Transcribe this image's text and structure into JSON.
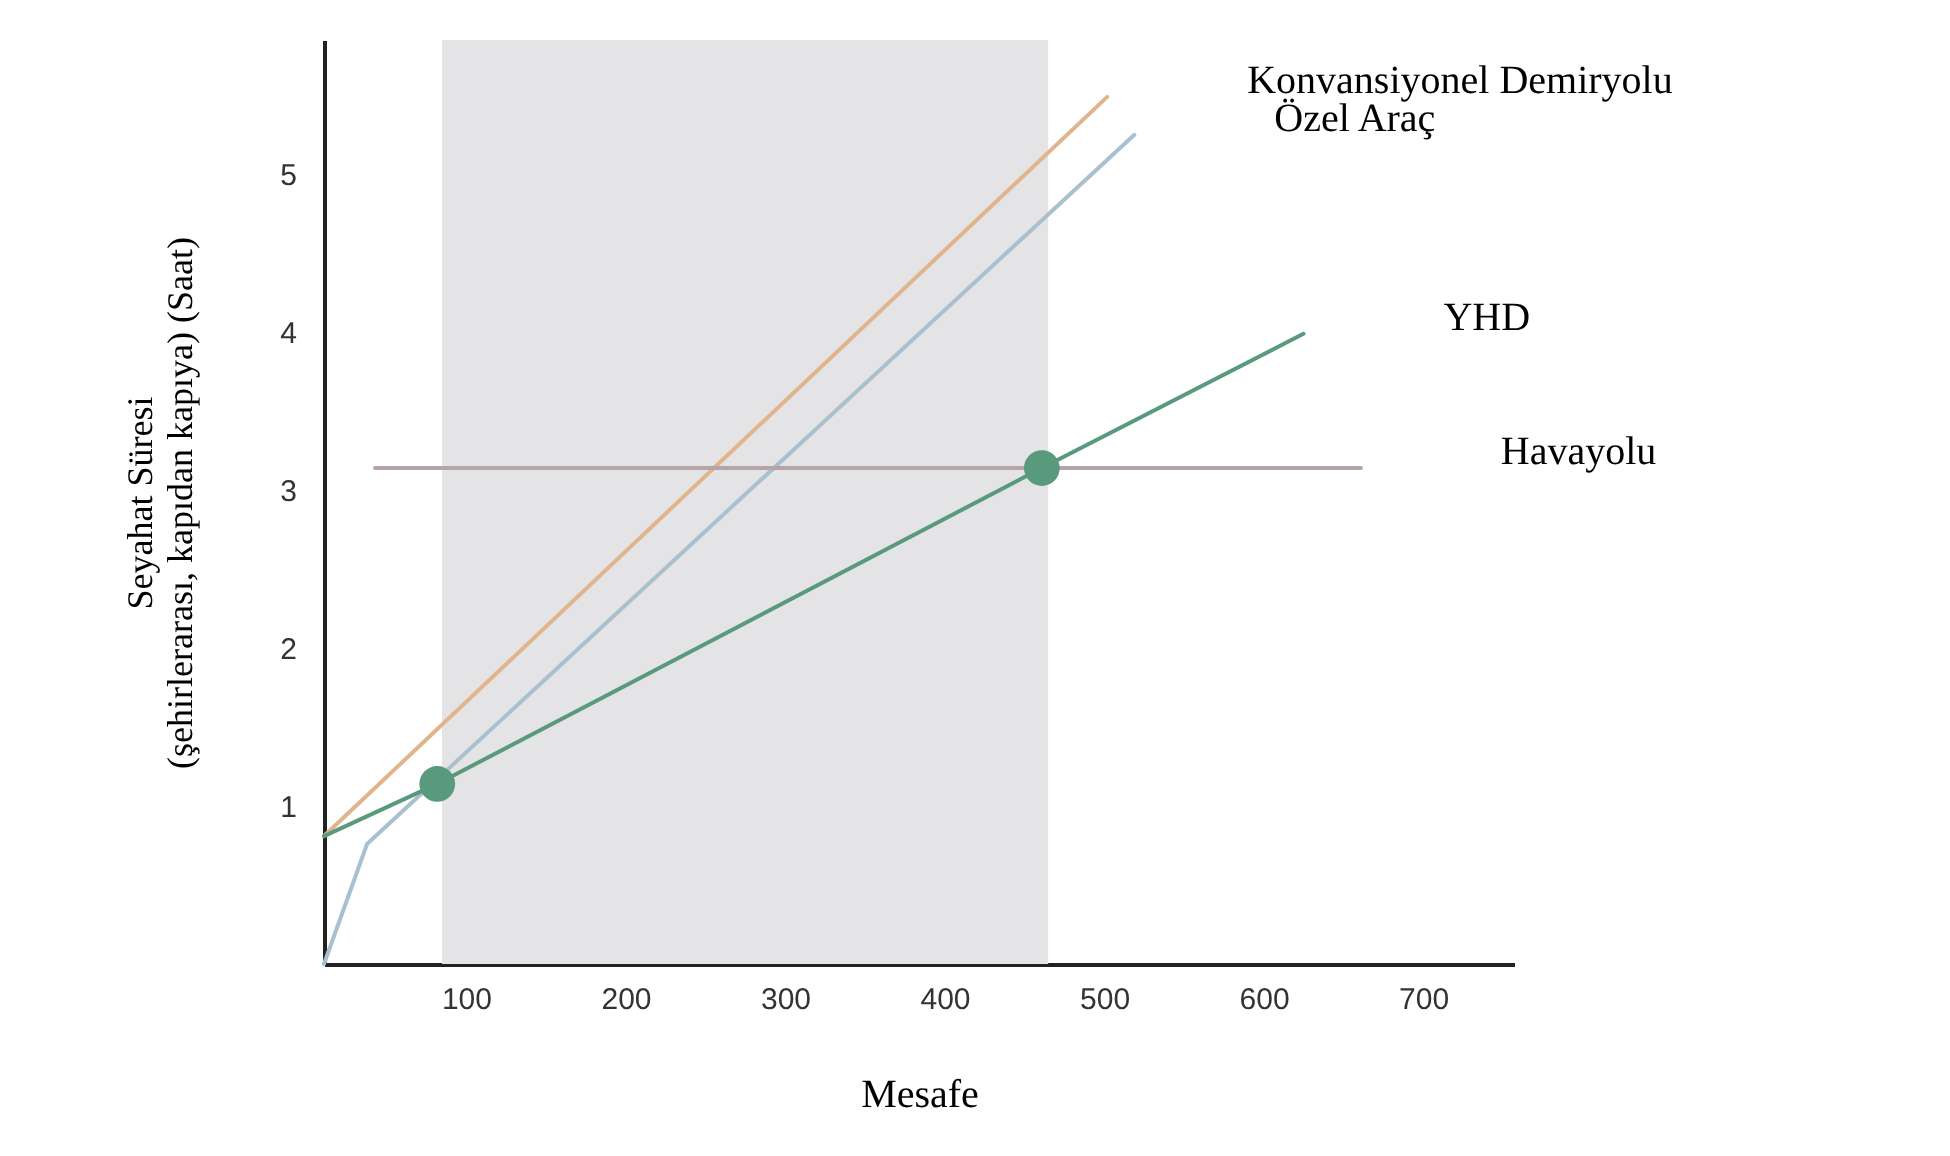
{
  "chart_data": {
    "type": "line",
    "xlabel": "Mesafe",
    "ylabel": "Seyahat Süresi\n(şehirlerarası, kapıdan kapıya) (Saat)",
    "xlim": [
      11,
      757
    ],
    "ylim": [
      0,
      5.85
    ],
    "xticks": [
      100,
      200,
      300,
      400,
      500,
      600,
      700
    ],
    "yticks": [
      1,
      2,
      3,
      4,
      5
    ],
    "series": [
      {
        "name": "Konvansiyonel Demiryolu",
        "color": "#e0b48c",
        "x": [
          11,
          502
        ],
        "values": [
          0.81,
          5.49
        ]
      },
      {
        "name": "Özel Araç",
        "color": "#a9c0cf",
        "x": [
          11,
          38,
          519
        ],
        "values": [
          0,
          0.76,
          5.25
        ]
      },
      {
        "name": "YHD",
        "color": "#5a9a7c",
        "x": [
          11,
          82,
          461,
          625
        ],
        "values": [
          0.81,
          1.14,
          3.14,
          3.99
        ]
      },
      {
        "name": "Havayolu",
        "color": "#b9a3ab",
        "x": [
          43,
          661
        ],
        "values": [
          3.14,
          3.14
        ]
      },
      {
        "type": "scatter",
        "color": "#5a9a7c",
        "x": [
          82,
          461
        ],
        "values": [
          1.14,
          3.14
        ],
        "marker": "circle"
      }
    ],
    "bands": [
      {
        "axis": "x",
        "from": 85,
        "to": 465,
        "color": "#e4e4e6"
      }
    ],
    "grid": false
  }
}
